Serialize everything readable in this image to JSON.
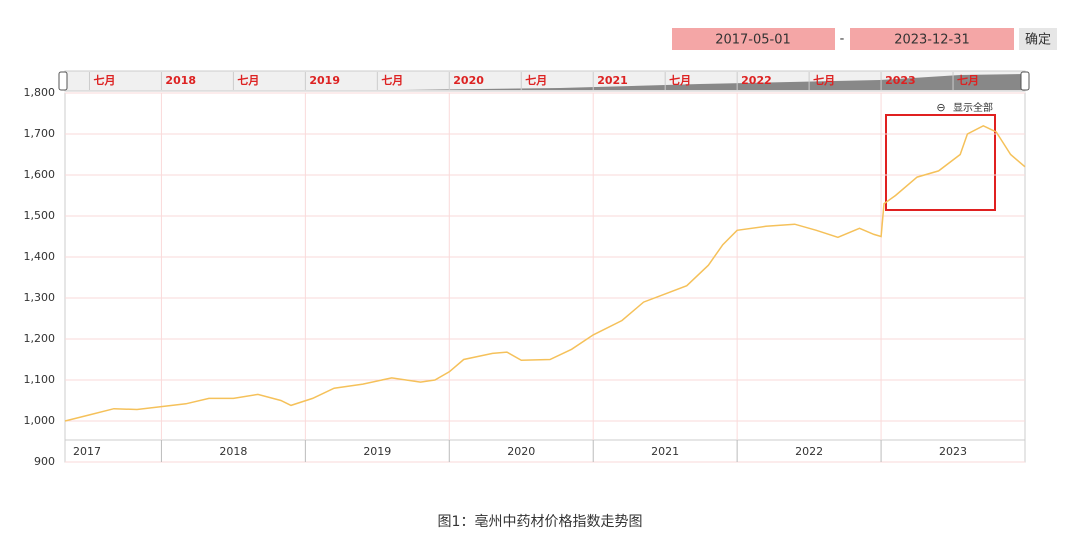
{
  "chart_data": {
    "type": "line",
    "start_date": "2017-05-01",
    "date_separator": "-",
    "end_date": "2023-12-31",
    "confirm_button": "确定",
    "zoom_label": "显示全部",
    "caption": "图1：亳州中药材价格指数走势图",
    "x": [
      2017.33,
      2017.5,
      2017.67,
      2017.83,
      2018.0,
      2018.17,
      2018.33,
      2018.5,
      2018.67,
      2018.83,
      2018.9,
      2019.05,
      2019.2,
      2019.4,
      2019.6,
      2019.8,
      2019.9,
      2020.0,
      2020.1,
      2020.3,
      2020.4,
      2020.5,
      2020.7,
      2020.85,
      2021.0,
      2021.2,
      2021.35,
      2021.5,
      2021.65,
      2021.8,
      2021.9,
      2022.0,
      2022.2,
      2022.4,
      2022.55,
      2022.7,
      2022.85,
      2022.95,
      2023.0,
      2023.02,
      2023.1,
      2023.25,
      2023.4,
      2023.55,
      2023.6,
      2023.71,
      2023.8,
      2023.9,
      2024.0
    ],
    "series": [
      {
        "name": "亳州中药材价格指数",
        "color": "#f5c15a",
        "values": [
          1000,
          1015,
          1030,
          1028,
          1035,
          1042,
          1055,
          1055,
          1065,
          1050,
          1038,
          1055,
          1080,
          1090,
          1105,
          1095,
          1100,
          1120,
          1150,
          1165,
          1168,
          1148,
          1150,
          1175,
          1210,
          1245,
          1290,
          1310,
          1330,
          1380,
          1430,
          1465,
          1475,
          1480,
          1465,
          1448,
          1470,
          1455,
          1450,
          1530,
          1550,
          1595,
          1610,
          1650,
          1700,
          1720,
          1705,
          1650,
          1620
        ]
      }
    ],
    "xlim": [
      2017.33,
      2024.0
    ],
    "xticks": [
      2018,
      2019,
      2020,
      2021,
      2022,
      2023
    ],
    "year_labels": [
      "2017",
      "2018",
      "2019",
      "2020",
      "2021",
      "2022",
      "2023"
    ],
    "navigator_ticks": [
      {
        "value": 2017.5,
        "label": "七月"
      },
      {
        "value": 2018,
        "label": "2018"
      },
      {
        "value": 2018.5,
        "label": "七月"
      },
      {
        "value": 2019,
        "label": "2019"
      },
      {
        "value": 2019.5,
        "label": "七月"
      },
      {
        "value": 2020,
        "label": "2020"
      },
      {
        "value": 2020.5,
        "label": "七月"
      },
      {
        "value": 2021,
        "label": "2021"
      },
      {
        "value": 2021.5,
        "label": "七月"
      },
      {
        "value": 2022,
        "label": "2022"
      },
      {
        "value": 2022.5,
        "label": "七月"
      },
      {
        "value": 2023,
        "label": "2023"
      },
      {
        "value": 2023.5,
        "label": "七月"
      }
    ],
    "ylim": [
      900,
      1800
    ],
    "yticks": [
      900,
      {
        "value": 1000,
        "label": "1,000"
      },
      {
        "value": 1100,
        "label": "1,100"
      },
      {
        "value": 1200,
        "label": "1,200"
      },
      {
        "value": 1300,
        "label": "1,300"
      },
      {
        "value": 1400,
        "label": "1,400"
      },
      {
        "value": 1500,
        "label": "1,500"
      },
      {
        "value": 1600,
        "label": "1,600"
      },
      {
        "value": 1700,
        "label": "1,700"
      },
      {
        "value": 1800,
        "label": "1,800"
      }
    ],
    "grid": true
  }
}
